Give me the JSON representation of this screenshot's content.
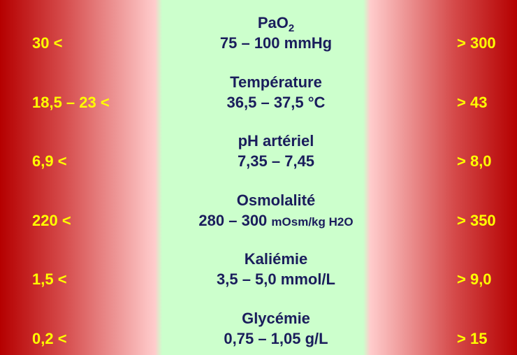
{
  "rows": [
    {
      "name": "PaO",
      "name_sub": "2",
      "normal": "75 – 100 mmHg",
      "low": "30 <",
      "high": "> 300"
    },
    {
      "name": "Température",
      "normal": "36,5 – 37,5 °C",
      "low": "18,5 – 23 <",
      "high": "> 43"
    },
    {
      "name": "pH artériel",
      "normal": "7,35 – 7,45",
      "low": "6,9 <",
      "high": "> 8,0"
    },
    {
      "name": "Osmolalité",
      "normal": "280 – 300",
      "normal_unit": "mOsm/kg H2O",
      "low": "220 <",
      "high": "> 350"
    },
    {
      "name": "Kaliémie",
      "normal": "3,5 – 5,0 mmol/L",
      "low": "1,5 <",
      "high": "> 9,0"
    },
    {
      "name": "Glycémie",
      "normal": "0,75 – 1,05 g/L",
      "low": "0,2 <",
      "high": "> 15"
    }
  ]
}
